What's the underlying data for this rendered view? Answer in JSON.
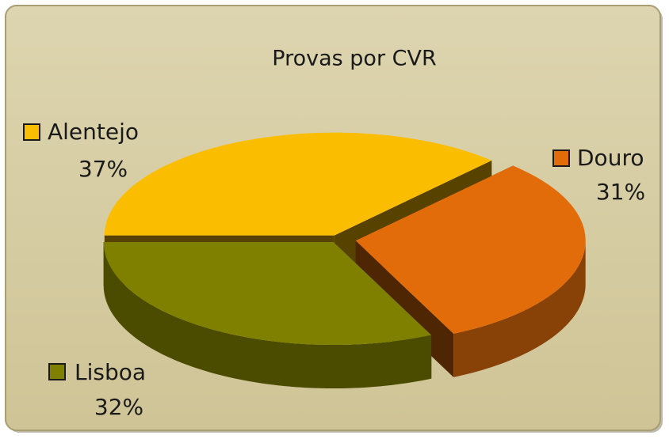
{
  "chart_data": {
    "type": "pie3d",
    "title": "Provas por CVR",
    "categories": [
      "Alentejo",
      "Douro",
      "Lisboa"
    ],
    "values": [
      37,
      31,
      32
    ],
    "value_labels": [
      "37%",
      "31%",
      "32%"
    ],
    "colors": [
      "#fbbd00",
      "#e36c0a",
      "#7f7f00"
    ]
  }
}
